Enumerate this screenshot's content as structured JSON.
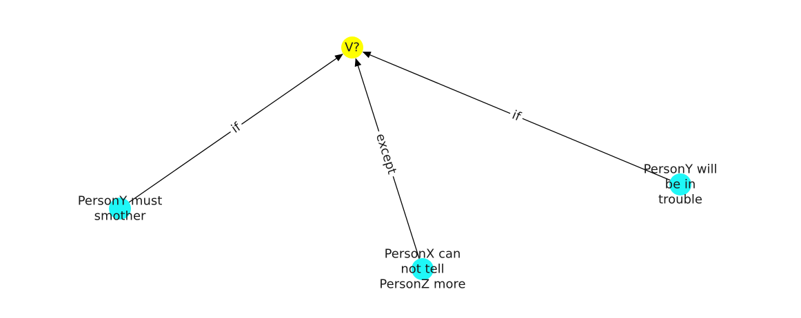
{
  "colors": {
    "root_node": "#ffff00",
    "leaf_node": "#1ff7f7",
    "edge": "#000000",
    "background": "#ffffff"
  },
  "nodes": [
    {
      "id": "root",
      "lines": [
        "V?"
      ],
      "kind": "root"
    },
    {
      "id": "n1",
      "lines": [
        "PersonY must",
        "smother"
      ],
      "kind": "leaf"
    },
    {
      "id": "n2",
      "lines": [
        "PersonX can",
        "not tell",
        "PersonZ more"
      ],
      "kind": "leaf"
    },
    {
      "id": "n3",
      "lines": [
        "PersonY will",
        "be in",
        "trouble"
      ],
      "kind": "leaf"
    }
  ],
  "edges": [
    {
      "from": "n1",
      "to": "root",
      "label": "if"
    },
    {
      "from": "n2",
      "to": "root",
      "label": "except"
    },
    {
      "from": "n3",
      "to": "root",
      "label": "if"
    }
  ]
}
